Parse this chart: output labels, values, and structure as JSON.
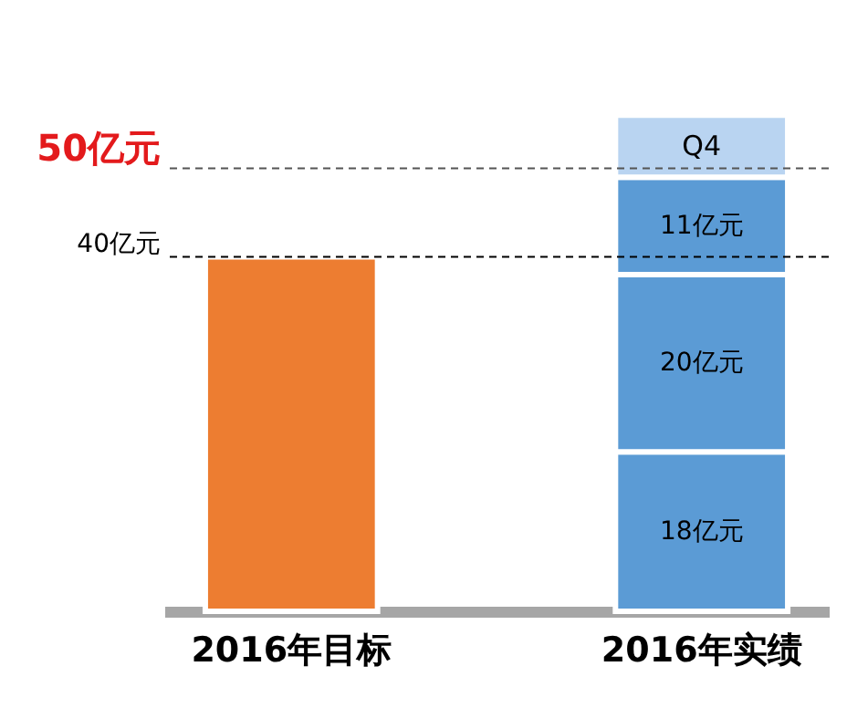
{
  "chart_data": {
    "type": "bar",
    "stacked": true,
    "categories": [
      "2016年目标",
      "2016年实绩"
    ],
    "series": [
      {
        "color": "#ed7d31",
        "values": [
          40,
          null
        ]
      },
      {
        "color": "#5b9bd5",
        "values": [
          null,
          18
        ],
        "value_labels": [
          null,
          "18亿元"
        ]
      },
      {
        "color": "#5b9bd5",
        "values": [
          null,
          20
        ],
        "value_labels": [
          null,
          "20亿元"
        ]
      },
      {
        "color": "#5b9bd5",
        "values": [
          null,
          11
        ],
        "value_labels": [
          null,
          "11亿元"
        ]
      },
      {
        "name": "Q4",
        "color": "#b9d4f1",
        "values": [
          null,
          7
        ]
      }
    ],
    "ylim": [
      0,
      69
    ],
    "tick_labels": "x",
    "grid": false,
    "ref_lines": [
      {
        "axis": "y",
        "value": 50,
        "label": "50亿元",
        "color": "#555555",
        "line_style": "dashed"
      },
      {
        "axis": "y",
        "value": 40,
        "label": "40亿元",
        "color": "#000000",
        "line_style": "dashed"
      }
    ]
  }
}
